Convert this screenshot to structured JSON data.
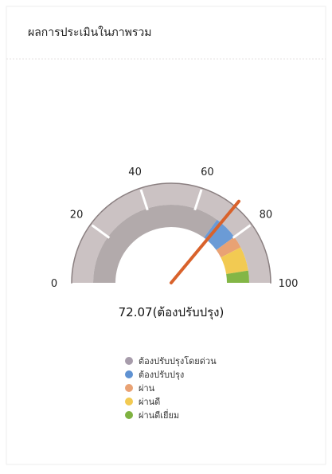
{
  "chart_data": {
    "type": "gauge",
    "title": "ผลการประเมินในภาพรวม",
    "value": 72.07,
    "value_label": "72.07(ต้องปรับปรุง)",
    "range": [
      0,
      100
    ],
    "ticks": [
      0,
      20,
      40,
      60,
      80,
      100
    ],
    "needle_color": "#d9622b",
    "bands": [
      {
        "name": "ต้องปรับปรุงโดยด่วน",
        "from": 0,
        "to": 70,
        "color": "#b2aaab",
        "legend_color": "#a79cab"
      },
      {
        "name": "ต้องปรับปรุง",
        "from": 70,
        "to": 80,
        "color": "#6b9bd6",
        "legend_color": "#5f92d2"
      },
      {
        "name": "ผ่าน",
        "from": 80,
        "to": 85,
        "color": "#e9a274",
        "legend_color": "#e9a274"
      },
      {
        "name": "ผ่านดี",
        "from": 85,
        "to": 95,
        "color": "#f2ca52",
        "legend_color": "#f2ca52"
      },
      {
        "name": "ผ่านดีเยี่ยม",
        "from": 95,
        "to": 100,
        "color": "#83b646",
        "legend_color": "#7fb241"
      }
    ]
  }
}
